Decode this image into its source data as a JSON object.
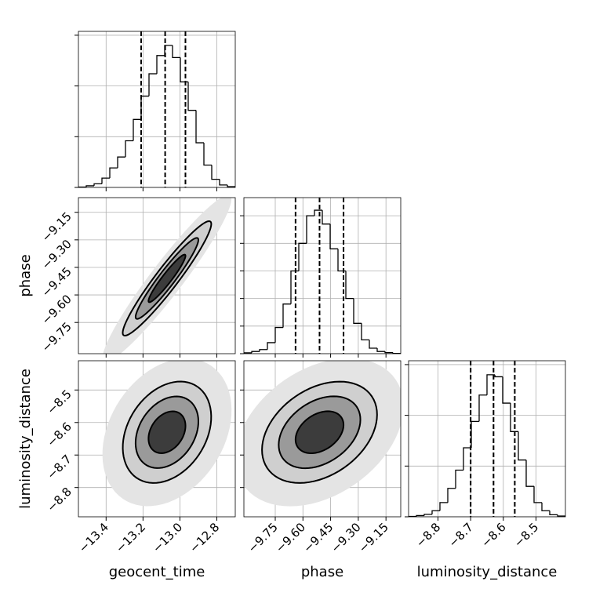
{
  "chart_data": [
    {
      "type": "histogram",
      "color": "#000000",
      "grid": true,
      "tick_labels": [],
      "xlim": [
        -13.55,
        -12.7
      ],
      "xticks": [
        {
          "value": -13.4,
          "label": "−13.4"
        },
        {
          "value": -13.2,
          "label": "−13.2"
        },
        {
          "value": -13.0,
          "label": "−13.0"
        },
        {
          "value": -12.8,
          "label": "−12.8"
        }
      ],
      "ylim": [
        0,
        769
      ],
      "yticks": [
        0,
        250,
        500,
        750
      ],
      "bins": [
        -13.55,
        -13.5075,
        -13.465,
        -13.4225,
        -13.38,
        -13.3375,
        -13.295,
        -13.2525,
        -13.21,
        -13.1675,
        -13.125,
        -13.0825,
        -13.04,
        -12.9975,
        -12.955,
        -12.9125,
        -12.87,
        -12.8275,
        -12.785,
        -12.7425,
        -12.7
      ],
      "counts": [
        2,
        8,
        18,
        46,
        96,
        150,
        230,
        335,
        450,
        560,
        650,
        700,
        640,
        520,
        380,
        220,
        110,
        40,
        12,
        4
      ],
      "quantiles": [
        -13.21,
        -13.08,
        -12.97
      ]
    },
    {
      "type": "contour2d",
      "grid": true,
      "tick_labels": [
        "y"
      ],
      "ylabel": "phase",
      "contour_color": "#000000",
      "xlim": [
        -13.55,
        -12.7
      ],
      "xticks": [
        {
          "value": -13.4,
          "label": "−13.4"
        },
        {
          "value": -13.2,
          "label": "−13.2"
        },
        {
          "value": -13.0,
          "label": "−13.0"
        },
        {
          "value": -12.8,
          "label": "−12.8"
        }
      ],
      "ylim": [
        -9.92,
        -9.07
      ],
      "yticks": [
        {
          "value": -9.75,
          "label": "−9.75"
        },
        {
          "value": -9.6,
          "label": "−9.60"
        },
        {
          "value": -9.45,
          "label": "−9.45"
        },
        {
          "value": -9.3,
          "label": "−9.30"
        },
        {
          "value": -9.15,
          "label": "−9.15"
        }
      ],
      "center": [
        -13.07,
        -9.51
      ],
      "cloud": {
        "axes": [
          [
            0.345,
            0.449
          ],
          [
            0.055,
            -0.072
          ]
        ],
        "fill": "#e4e4e4"
      },
      "contours": [
        {
          "axes": [
            [
              0.237,
              0.308
            ],
            [
              0.038,
              -0.049
            ]
          ],
          "fill": "#cfcfcf"
        },
        {
          "axes": [
            [
              0.168,
              0.218
            ],
            [
              0.027,
              -0.035
            ]
          ],
          "fill": "#9a9a9a"
        },
        {
          "axes": [
            [
              0.099,
              0.128
            ],
            [
              0.016,
              -0.021
            ]
          ],
          "fill": "#3c3c3c"
        }
      ]
    },
    {
      "type": "histogram",
      "color": "#000000",
      "grid": true,
      "tick_labels": [],
      "xlim": [
        -9.92,
        -9.07
      ],
      "xticks": [
        {
          "value": -9.75,
          "label": "−9.75"
        },
        {
          "value": -9.6,
          "label": "−9.60"
        },
        {
          "value": -9.45,
          "label": "−9.45"
        },
        {
          "value": -9.3,
          "label": "−9.30"
        },
        {
          "value": -9.15,
          "label": "−9.15"
        }
      ],
      "ylim": [
        0,
        565.7
      ],
      "yticks": [
        0,
        100,
        200,
        300,
        400,
        500
      ],
      "bins": [
        -9.92,
        -9.8775,
        -9.835,
        -9.7925,
        -9.75,
        -9.7075,
        -9.665,
        -9.6225,
        -9.58,
        -9.5375,
        -9.495,
        -9.4525,
        -9.41,
        -9.3675,
        -9.325,
        -9.2825,
        -9.24,
        -9.1975,
        -9.155,
        -9.1125,
        -9.07
      ],
      "counts": [
        3,
        8,
        15,
        40,
        95,
        180,
        300,
        400,
        500,
        520,
        470,
        380,
        300,
        200,
        110,
        50,
        20,
        8,
        4,
        1
      ],
      "quantiles": [
        -9.64,
        -9.51,
        -9.38
      ]
    },
    {
      "type": "contour2d",
      "grid": true,
      "tick_labels": [
        "x",
        "y"
      ],
      "xlabel": "geocent_time",
      "ylabel": "luminosity_distance",
      "contour_color": "#000000",
      "xlim": [
        -13.55,
        -12.7
      ],
      "xticks": [
        {
          "value": -13.4,
          "label": "−13.4"
        },
        {
          "value": -13.2,
          "label": "−13.2"
        },
        {
          "value": -13.0,
          "label": "−13.0"
        },
        {
          "value": -12.8,
          "label": "−12.8"
        }
      ],
      "ylim": [
        -8.89,
        -8.41
      ],
      "yticks": [
        {
          "value": -8.8,
          "label": "−8.8"
        },
        {
          "value": -8.7,
          "label": "−8.7"
        },
        {
          "value": -8.6,
          "label": "−8.6"
        },
        {
          "value": -8.5,
          "label": "−8.5"
        }
      ],
      "center": [
        -13.07,
        -8.63
      ],
      "cloud": {
        "axes": [
          [
            0.282,
            0.183
          ],
          [
            0.207,
            -0.135
          ]
        ],
        "fill": "#e4e4e4"
      },
      "contours": [
        {
          "axes": [
            [
              0.193,
              0.126
            ],
            [
              0.142,
              -0.092
            ]
          ],
          "fill": "#cfcfcf"
        },
        {
          "axes": [
            [
              0.137,
              0.089
            ],
            [
              0.101,
              -0.065
            ]
          ],
          "fill": "#9a9a9a"
        },
        {
          "axes": [
            [
              0.081,
              0.052
            ],
            [
              0.059,
              -0.038
            ]
          ],
          "fill": "#3c3c3c"
        }
      ]
    },
    {
      "type": "contour2d",
      "grid": true,
      "tick_labels": [
        "x"
      ],
      "xlabel": "phase",
      "contour_color": "#000000",
      "xlim": [
        -9.92,
        -9.07
      ],
      "xticks": [
        {
          "value": -9.75,
          "label": "−9.75"
        },
        {
          "value": -9.6,
          "label": "−9.60"
        },
        {
          "value": -9.45,
          "label": "−9.45"
        },
        {
          "value": -9.3,
          "label": "−9.30"
        },
        {
          "value": -9.15,
          "label": "−9.15"
        }
      ],
      "ylim": [
        -8.89,
        -8.41
      ],
      "yticks": [
        {
          "value": -8.8,
          "label": "−8.8"
        },
        {
          "value": -8.7,
          "label": "−8.7"
        },
        {
          "value": -8.6,
          "label": "−8.6"
        },
        {
          "value": -8.5,
          "label": "−8.5"
        }
      ],
      "center": [
        -9.51,
        -8.63
      ],
      "cloud": {
        "axes": [
          [
            0.374,
            0.187
          ],
          [
            0.259,
            -0.13
          ]
        ],
        "fill": "#e4e4e4"
      },
      "contours": [
        {
          "axes": [
            [
              0.256,
              0.128
            ],
            [
              0.178,
              -0.089
            ]
          ],
          "fill": "#cfcfcf"
        },
        {
          "axes": [
            [
              0.182,
              0.091
            ],
            [
              0.126,
              -0.063
            ]
          ],
          "fill": "#9a9a9a"
        },
        {
          "axes": [
            [
              0.107,
              0.053
            ],
            [
              0.074,
              -0.037
            ]
          ],
          "fill": "#3c3c3c"
        }
      ]
    },
    {
      "type": "histogram",
      "color": "#000000",
      "grid": true,
      "tick_labels": [
        "x"
      ],
      "xlabel": "luminosity_distance",
      "xlim": [
        -8.89,
        -8.41
      ],
      "xticks": [
        {
          "value": -8.8,
          "label": "−8.8"
        },
        {
          "value": -8.7,
          "label": "−8.7"
        },
        {
          "value": -8.6,
          "label": "−8.6"
        },
        {
          "value": -8.5,
          "label": "−8.5"
        }
      ],
      "ylim": [
        0,
        769
      ],
      "yticks": [
        0,
        250,
        500,
        750
      ],
      "bins": [
        -8.89,
        -8.866,
        -8.842,
        -8.818,
        -8.794,
        -8.77,
        -8.746,
        -8.722,
        -8.698,
        -8.674,
        -8.65,
        -8.626,
        -8.602,
        -8.578,
        -8.554,
        -8.53,
        -8.506,
        -8.482,
        -8.458,
        -8.434,
        -8.41
      ],
      "counts": [
        2,
        6,
        12,
        30,
        70,
        140,
        230,
        340,
        470,
        600,
        700,
        690,
        560,
        420,
        280,
        150,
        70,
        30,
        10,
        4
      ],
      "quantiles": [
        -8.7,
        -8.63,
        -8.565
      ]
    }
  ]
}
